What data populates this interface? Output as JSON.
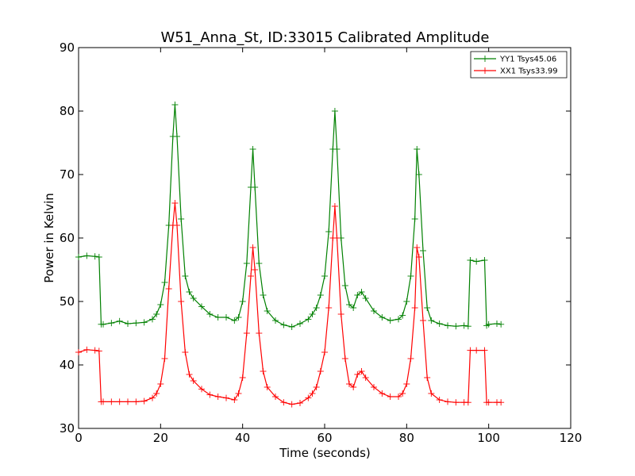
{
  "chart_data": {
    "type": "line",
    "title": "W51_Anna_St, ID:33015 Calibrated Amplitude",
    "xlabel": "Time (seconds)",
    "ylabel": "Power in Kelvin",
    "xlim": [
      0,
      120
    ],
    "ylim": [
      30,
      90
    ],
    "xticks": [
      "0",
      "20",
      "40",
      "60",
      "80",
      "100",
      "120"
    ],
    "yticks": [
      "30",
      "40",
      "50",
      "60",
      "70",
      "80",
      "90"
    ],
    "grid": false,
    "legend_position": "top-right",
    "marker": "plus",
    "series": [
      {
        "name": "YY1 Tsys45.06",
        "color": "#008000",
        "x": [
          0,
          2,
          4,
          5,
          5.5,
          6,
          8,
          10,
          12,
          14,
          16,
          18,
          19,
          20,
          21,
          22,
          23,
          23.5,
          24,
          25,
          26,
          27,
          28,
          30,
          32,
          34,
          36,
          38,
          39,
          40,
          41,
          42,
          42.5,
          43,
          44,
          45,
          46,
          48,
          50,
          52,
          54,
          56,
          57,
          58,
          59,
          60,
          61,
          62,
          62.5,
          63,
          64,
          65,
          66,
          67,
          68,
          69,
          70,
          72,
          74,
          76,
          78,
          79,
          80,
          81,
          82,
          82.5,
          83,
          84,
          85,
          86,
          88,
          90,
          92,
          94,
          95,
          95.5,
          97,
          99,
          99.5,
          100,
          102,
          103
        ],
        "y": [
          57,
          57.2,
          57.1,
          57,
          46.4,
          46.4,
          46.6,
          46.9,
          46.5,
          46.6,
          46.7,
          47.2,
          48,
          49.5,
          53,
          62,
          76,
          81,
          76,
          63,
          54,
          51.5,
          50.5,
          49.2,
          48,
          47.5,
          47.5,
          47,
          47.5,
          50,
          56,
          68,
          74,
          68,
          56,
          51,
          48.5,
          47,
          46.3,
          46,
          46.5,
          47.2,
          48,
          49,
          51,
          54,
          61,
          74,
          80,
          74,
          60,
          52.5,
          49.5,
          49,
          51,
          51.5,
          50.5,
          48.5,
          47.5,
          47,
          47.2,
          47.8,
          50,
          54,
          63,
          74,
          70,
          58,
          49,
          47,
          46.5,
          46.2,
          46.1,
          46.2,
          46.1,
          56.5,
          56.3,
          56.5,
          46.2,
          46.4,
          46.5,
          46.4
        ]
      },
      {
        "name": "XX1 Tsys33.99",
        "color": "#ff0000",
        "x": [
          0,
          2,
          4,
          5,
          5.5,
          6,
          8,
          10,
          12,
          14,
          16,
          18,
          19,
          20,
          21,
          22,
          23,
          23.5,
          24,
          25,
          26,
          27,
          28,
          30,
          32,
          34,
          36,
          38,
          39,
          40,
          41,
          42,
          42.5,
          43,
          44,
          45,
          46,
          48,
          50,
          52,
          54,
          56,
          57,
          58,
          59,
          60,
          61,
          62,
          62.5,
          63,
          64,
          65,
          66,
          67,
          68,
          69,
          70,
          72,
          74,
          76,
          78,
          79,
          80,
          81,
          82,
          82.5,
          83,
          84,
          85,
          86,
          88,
          90,
          92,
          94,
          95,
          95.5,
          97,
          99,
          99.5,
          100,
          102,
          103
        ],
        "y": [
          42,
          42.4,
          42.3,
          42.2,
          34.2,
          34.2,
          34.2,
          34.2,
          34.2,
          34.2,
          34.3,
          34.8,
          35.5,
          37,
          41,
          52,
          62,
          65.5,
          62,
          50,
          42,
          38.5,
          37.5,
          36.2,
          35.3,
          35,
          34.8,
          34.5,
          35.5,
          38,
          45,
          54,
          58.5,
          55,
          45,
          39,
          36.5,
          35,
          34.1,
          33.8,
          34,
          34.8,
          35.5,
          36.5,
          39,
          42,
          49,
          60,
          65,
          60,
          48,
          41,
          37,
          36.5,
          38.5,
          39,
          38,
          36.5,
          35.5,
          35,
          35,
          35.5,
          37,
          41,
          49,
          58.5,
          57,
          47,
          38,
          35.5,
          34.5,
          34.2,
          34.1,
          34.1,
          34.1,
          42.3,
          42.3,
          42.3,
          34.1,
          34.1,
          34.1,
          34.1
        ]
      }
    ]
  }
}
